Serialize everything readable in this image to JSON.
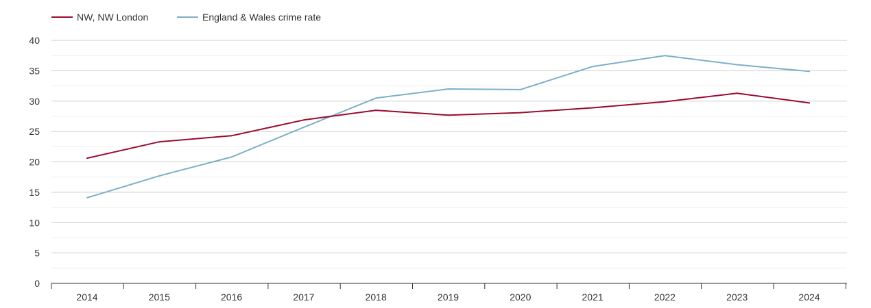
{
  "chart_data": {
    "type": "line",
    "title": "",
    "xlabel": "",
    "ylabel": "",
    "categories": [
      "2014",
      "2015",
      "2016",
      "2017",
      "2018",
      "2019",
      "2020",
      "2021",
      "2022",
      "2023",
      "2024"
    ],
    "yticks": [
      "0",
      "5",
      "10",
      "15",
      "20",
      "25",
      "30",
      "35",
      "40"
    ],
    "ylim": [
      0,
      40
    ],
    "grid": true,
    "legend_position": "top-left",
    "series": [
      {
        "name": "NW, NW London",
        "color": "#9b0a2e",
        "values": [
          20.6,
          23.3,
          24.3,
          26.9,
          28.5,
          27.7,
          28.1,
          28.9,
          29.9,
          31.3,
          29.7
        ]
      },
      {
        "name": "England & Wales crime rate",
        "color": "#7bafc9",
        "values": [
          14.1,
          17.7,
          20.8,
          25.7,
          30.5,
          32.0,
          31.9,
          35.7,
          37.5,
          36.0,
          34.9
        ]
      }
    ]
  }
}
